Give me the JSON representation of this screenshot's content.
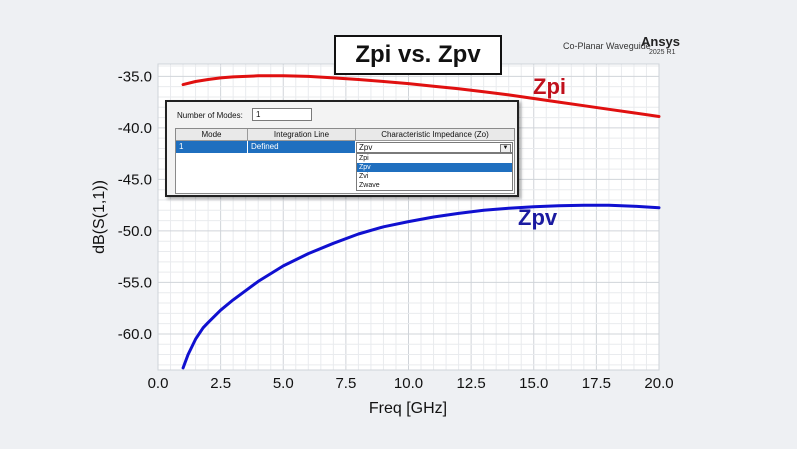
{
  "chart_data": {
    "type": "line",
    "title": "Zpi vs. Zpv",
    "subtitle": "Co-Planar Waveguide",
    "xlabel": "Freq [GHz]",
    "ylabel": "dB(S(1,1))",
    "xlim": [
      0,
      20
    ],
    "ylim": [
      -63.5,
      -33.8
    ],
    "xticks": [
      "0.0",
      "2.5",
      "5.0",
      "7.5",
      "10.0",
      "12.5",
      "15.0",
      "17.5",
      "20.0"
    ],
    "yticks": [
      "-35.0",
      "-40.0",
      "-45.0",
      "-50.0",
      "-55.0",
      "-60.0"
    ],
    "grid": true,
    "series": [
      {
        "name": "Zpi",
        "color": "#e01010",
        "label_color": "#c0101c",
        "x": [
          1.0,
          1.5,
          2.0,
          2.5,
          3.0,
          3.5,
          4.0,
          5.0,
          6.0,
          7.0,
          8.0,
          9.0,
          10.0,
          11.0,
          12.0,
          13.0,
          14.0,
          15.0,
          16.0,
          17.0,
          18.0,
          19.0,
          20.0
        ],
        "values": [
          -35.8,
          -35.5,
          -35.3,
          -35.15,
          -35.05,
          -35.0,
          -34.95,
          -34.95,
          -35.0,
          -35.15,
          -35.3,
          -35.5,
          -35.7,
          -35.95,
          -36.2,
          -36.5,
          -36.8,
          -37.15,
          -37.5,
          -37.85,
          -38.2,
          -38.55,
          -38.9
        ]
      },
      {
        "name": "Zpv",
        "color": "#1010d0",
        "label_color": "#1a1aa0",
        "x": [
          1.0,
          1.2,
          1.5,
          1.8,
          2.0,
          2.5,
          3.0,
          4.0,
          5.0,
          6.0,
          7.0,
          8.0,
          9.0,
          10.0,
          11.0,
          12.0,
          13.0,
          14.0,
          15.0,
          16.0,
          17.0,
          18.0,
          19.0,
          20.0
        ],
        "values": [
          -63.3,
          -62.0,
          -60.5,
          -59.4,
          -58.9,
          -57.7,
          -56.7,
          -54.9,
          -53.4,
          -52.2,
          -51.2,
          -50.3,
          -49.6,
          -49.1,
          -48.65,
          -48.3,
          -48.0,
          -47.8,
          -47.65,
          -47.55,
          -47.5,
          -47.5,
          -47.6,
          -47.75
        ]
      }
    ]
  },
  "brand": {
    "subtitle": "Co-Planar Waveguide",
    "name": "Ansys",
    "version": "2025 R1"
  },
  "dialog": {
    "modes_label": "Number of Modes:",
    "modes_value": "1",
    "columns": [
      "Mode",
      "Integration Line",
      "Characteristic Impedance (Zo)"
    ],
    "row": {
      "mode": "1",
      "integration_line": "Defined",
      "impedance": "Zpv"
    },
    "options": [
      "Zpi",
      "Zpv",
      "Zvi",
      "Zwave"
    ],
    "selected_option": "Zpv"
  }
}
